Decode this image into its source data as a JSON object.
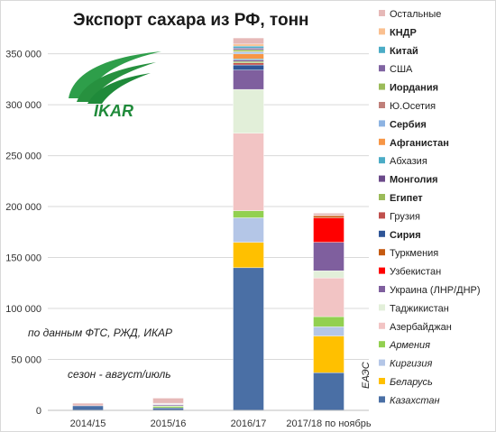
{
  "chart_data": {
    "type": "bar",
    "stacked": true,
    "title": "Экспорт сахара из РФ, тонн",
    "xlabel": "",
    "ylabel": "",
    "ylim": [
      0,
      370000
    ],
    "yticks": [
      0,
      50000,
      100000,
      150000,
      200000,
      250000,
      300000,
      350000
    ],
    "ytick_labels": [
      "0",
      "50 000",
      "100 000",
      "150 000",
      "200 000",
      "250 000",
      "300 000",
      "350 000"
    ],
    "grid": true,
    "legend_position": "right",
    "categories": [
      "2014/15",
      "2015/16",
      "2016/17",
      "2017/18 по ноябрь"
    ],
    "series": [
      {
        "name": "Казахстан",
        "color": "#4a6fa5",
        "values": [
          4500,
          2500,
          140000,
          37000
        ]
      },
      {
        "name": "Беларусь",
        "color": "#ffc000",
        "values": [
          0,
          0,
          25000,
          36000
        ]
      },
      {
        "name": "Киргизия",
        "color": "#b4c6e7",
        "values": [
          0,
          0,
          24000,
          9000
        ]
      },
      {
        "name": "Армения",
        "color": "#92d050",
        "values": [
          0,
          1500,
          7000,
          10000
        ]
      },
      {
        "name": "Азербайджан",
        "color": "#f2c4c4",
        "values": [
          0,
          0,
          76000,
          38000
        ]
      },
      {
        "name": "Таджикистан",
        "color": "#e2efd9",
        "values": [
          0,
          500,
          43000,
          7000
        ]
      },
      {
        "name": "Украина (ЛНР/ДНР)",
        "color": "#7f5f9e",
        "values": [
          0,
          1000,
          19000,
          28000
        ]
      },
      {
        "name": "Узбекистан",
        "color": "#ff0000",
        "values": [
          0,
          0,
          0,
          24000
        ]
      },
      {
        "name": "Туркмения",
        "color": "#c55a11",
        "values": [
          0,
          0,
          0,
          2000
        ]
      },
      {
        "name": "Сирия",
        "color": "#2f5597",
        "values": [
          0,
          0,
          5000,
          0
        ]
      },
      {
        "name": "Грузия",
        "color": "#c0504d",
        "values": [
          0,
          500,
          2000,
          500
        ]
      },
      {
        "name": "Египет",
        "color": "#9bbb59",
        "values": [
          0,
          0,
          1500,
          0
        ]
      },
      {
        "name": "Монголия",
        "color": "#6b4a8a",
        "values": [
          0,
          0,
          1500,
          0
        ]
      },
      {
        "name": "Абхазия",
        "color": "#4bacc6",
        "values": [
          0,
          500,
          1000,
          0
        ]
      },
      {
        "name": "Афганистан",
        "color": "#f79646",
        "values": [
          0,
          0,
          5000,
          0
        ]
      },
      {
        "name": "Сербия",
        "color": "#8db3e2",
        "values": [
          0,
          0,
          1500,
          0
        ]
      },
      {
        "name": "Ю.Осетия",
        "color": "#c0807a",
        "values": [
          0,
          500,
          500,
          0
        ]
      },
      {
        "name": "Иордания",
        "color": "#9bbb59",
        "values": [
          0,
          0,
          2000,
          0
        ]
      },
      {
        "name": "США",
        "color": "#8064a2",
        "values": [
          0,
          0,
          1500,
          0
        ]
      },
      {
        "name": "Китай",
        "color": "#4bacc6",
        "values": [
          0,
          0,
          2000,
          0
        ]
      },
      {
        "name": "КНДР",
        "color": "#fac090",
        "values": [
          0,
          0,
          2000,
          0
        ]
      },
      {
        "name": "Остальные",
        "color": "#e6b9b8",
        "values": [
          2500,
          5000,
          6000,
          2000
        ]
      }
    ],
    "legend": [
      {
        "label": "Остальные",
        "style": "normal",
        "color": "#e6b9b8"
      },
      {
        "label": "КНДР",
        "style": "bold",
        "color": "#fac090"
      },
      {
        "label": "Китай",
        "style": "bold",
        "color": "#4bacc6"
      },
      {
        "label": "США",
        "style": "normal",
        "color": "#8064a2"
      },
      {
        "label": "Иордания",
        "style": "bold",
        "color": "#9bbb59"
      },
      {
        "label": "Ю.Осетия",
        "style": "normal",
        "color": "#c0807a"
      },
      {
        "label": "Сербия",
        "style": "bold",
        "color": "#8db3e2"
      },
      {
        "label": "Афганистан",
        "style": "bold",
        "color": "#f79646"
      },
      {
        "label": "Абхазия",
        "style": "normal",
        "color": "#4bacc6"
      },
      {
        "label": "Монголия",
        "style": "bold",
        "color": "#6b4a8a"
      },
      {
        "label": "Египет",
        "style": "bold",
        "color": "#9bbb59"
      },
      {
        "label": "Грузия",
        "style": "normal",
        "color": "#c0504d"
      },
      {
        "label": "Сирия",
        "style": "bold",
        "color": "#2f5597"
      },
      {
        "label": "Туркмения",
        "style": "normal",
        "color": "#c55a11"
      },
      {
        "label": "Узбекистан",
        "style": "normal",
        "color": "#ff0000"
      },
      {
        "label": "Украина (ЛНР/ДНР)",
        "style": "normal",
        "color": "#7f5f9e"
      },
      {
        "label": "Таджикистан",
        "style": "normal",
        "color": "#e2efd9"
      },
      {
        "label": "Азербайджан",
        "style": "normal",
        "color": "#f2c4c4"
      },
      {
        "label": "Армения",
        "style": "italic",
        "color": "#92d050"
      },
      {
        "label": "Киргизия",
        "style": "italic",
        "color": "#b4c6e7"
      },
      {
        "label": "Беларусь",
        "style": "italic",
        "color": "#ffc000"
      },
      {
        "label": "Казахстан",
        "style": "italic",
        "color": "#4a6fa5"
      }
    ],
    "legend_group_label": "ЕАЭС",
    "annotations": [
      "по данным ФТС, РЖД, ИКАР",
      "сезон - август/июль"
    ]
  },
  "logo": {
    "text": "IKAR",
    "color": "#1f8a3a"
  }
}
